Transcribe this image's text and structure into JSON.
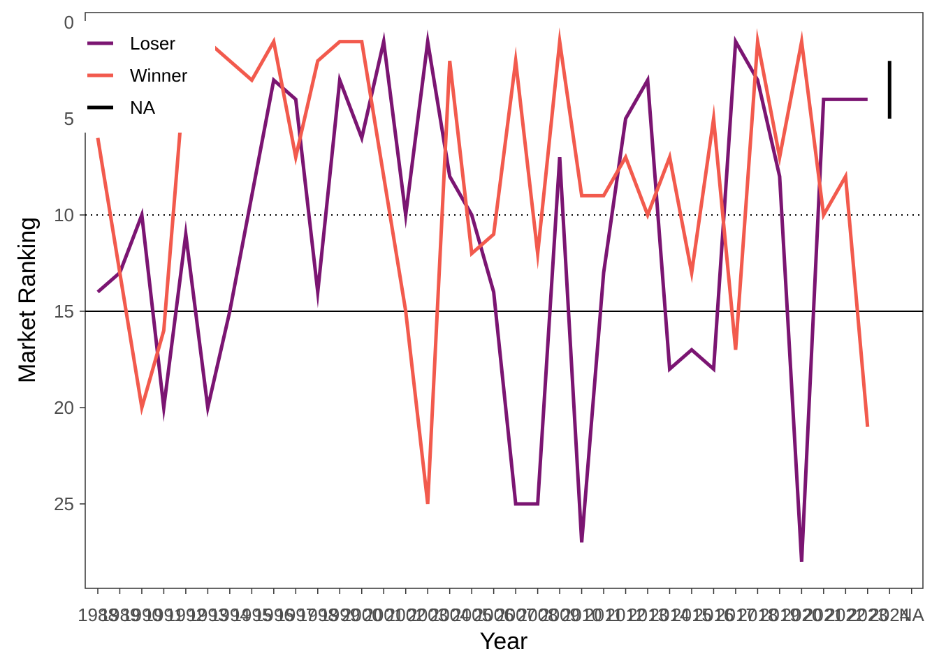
{
  "chart_data": {
    "type": "line",
    "xlabel": "Year",
    "ylabel": "Market Ranking",
    "ylim": [
      0,
      29.3
    ],
    "y_reversed": true,
    "y_ticks": [
      "0",
      "5",
      "10",
      "15",
      "20",
      "25"
    ],
    "categories": [
      "1988",
      "1989",
      "1990",
      "1991",
      "1992",
      "1993",
      "1994",
      "1995",
      "1996",
      "1997",
      "1998",
      "1999",
      "2000",
      "2001",
      "2002",
      "2003",
      "2004",
      "2005",
      "2006",
      "2007",
      "2008",
      "2009",
      "2010",
      "2011",
      "2012",
      "2013",
      "2014",
      "2015",
      "2016",
      "2017",
      "2018",
      "2019",
      "2020",
      "2021",
      "2022",
      "2023",
      "2024",
      "NA"
    ],
    "x_tick_labels": [
      "1988",
      "1989",
      "1990",
      "1991",
      "1992",
      "1993",
      "1994",
      "1995",
      "1996",
      "1997",
      "1998",
      "1999",
      "2000",
      "2001",
      "2002",
      "2003",
      "2004",
      "2005",
      "2006",
      "2007",
      "2008",
      "2009",
      "2010",
      "2011",
      "2012",
      "2013",
      "2014",
      "2015",
      "2016",
      "2017",
      "2018",
      "2019",
      "2020",
      "2021",
      "2022",
      "2023",
      "2024",
      "NA"
    ],
    "series": [
      {
        "name": "Loser",
        "color": "#7b1572",
        "values": [
          14,
          13,
          10,
          20,
          11,
          20,
          15,
          9,
          3,
          4,
          14,
          3,
          6,
          1,
          10,
          1,
          8,
          10,
          14,
          25,
          25,
          7,
          27,
          13,
          5,
          3,
          18,
          17,
          18,
          1,
          3,
          8,
          28,
          4,
          4,
          4,
          null,
          null
        ]
      },
      {
        "name": "Winner",
        "color": "#f25a4d",
        "values": [
          6,
          13,
          20,
          16,
          2,
          1,
          2,
          3,
          1,
          7,
          2,
          1,
          1,
          8,
          15,
          25,
          2,
          12,
          11,
          2,
          12,
          1,
          9,
          9,
          7,
          10,
          7,
          13,
          5,
          17,
          1,
          7,
          1,
          10,
          8,
          21,
          null,
          null
        ]
      },
      {
        "name": "NA",
        "color": "#000000",
        "values": [
          null,
          null,
          null,
          null,
          null,
          null,
          null,
          null,
          null,
          null,
          null,
          null,
          null,
          null,
          null,
          null,
          null,
          null,
          null,
          null,
          null,
          null,
          null,
          null,
          null,
          null,
          null,
          null,
          null,
          null,
          null,
          null,
          null,
          null,
          null,
          null,
          [
            2,
            5
          ],
          null
        ]
      }
    ],
    "hlines": [
      {
        "y": 10,
        "style": "dotted",
        "color": "#000000"
      },
      {
        "y": 15,
        "style": "solid",
        "color": "#000000"
      }
    ],
    "legend": {
      "placement": "top-left",
      "entries": [
        {
          "label": "Loser",
          "color": "#7b1572"
        },
        {
          "label": "Winner",
          "color": "#f25a4d"
        },
        {
          "label": "NA",
          "color": "#000000"
        }
      ]
    },
    "grid": false
  }
}
